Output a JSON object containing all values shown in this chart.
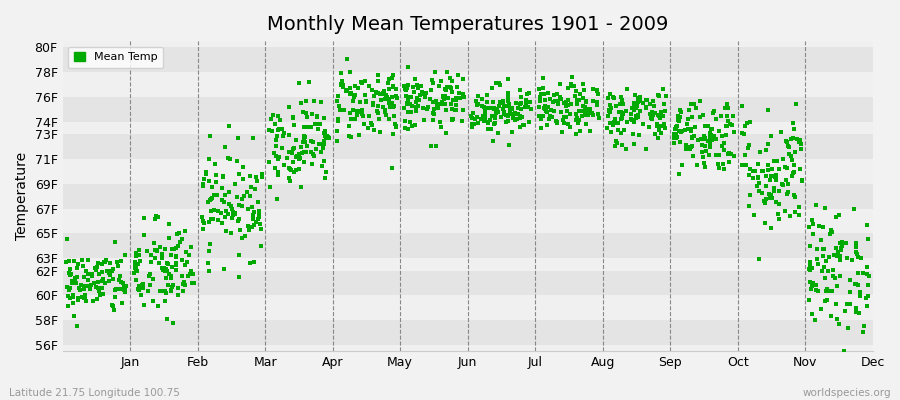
{
  "title": "Monthly Mean Temperatures 1901 - 2009",
  "ylabel": "Temperature",
  "xlabel_labels": [
    "Jan",
    "Feb",
    "Mar",
    "Apr",
    "May",
    "Jun",
    "Jul",
    "Aug",
    "Sep",
    "Oct",
    "Nov",
    "Dec"
  ],
  "ytick_labels": [
    "56F",
    "58F",
    "60F",
    "62F",
    "63F",
    "65F",
    "67F",
    "69F",
    "71F",
    "73F",
    "74F",
    "76F",
    "78F",
    "80F"
  ],
  "ytick_values": [
    56,
    58,
    60,
    62,
    63,
    65,
    67,
    69,
    71,
    73,
    74,
    76,
    78,
    80
  ],
  "ylim": [
    55.5,
    80.5
  ],
  "dot_color": "#00aa00",
  "bg_color": "#f2f2f2",
  "plot_bg_light": "#f0f0f0",
  "plot_bg_dark": "#e4e4e4",
  "legend_label": "Mean Temp",
  "footer_left": "Latitude 21.75 Longitude 100.75",
  "footer_right": "worldspecies.org",
  "n_years": 109,
  "monthly_means": [
    61.0,
    62.0,
    67.5,
    72.5,
    75.5,
    75.5,
    75.0,
    75.0,
    74.5,
    73.0,
    70.0,
    62.0
  ],
  "monthly_stds": [
    1.3,
    2.0,
    2.2,
    1.8,
    1.5,
    1.2,
    1.0,
    1.0,
    1.2,
    1.5,
    2.5,
    2.5
  ],
  "seed": 42
}
